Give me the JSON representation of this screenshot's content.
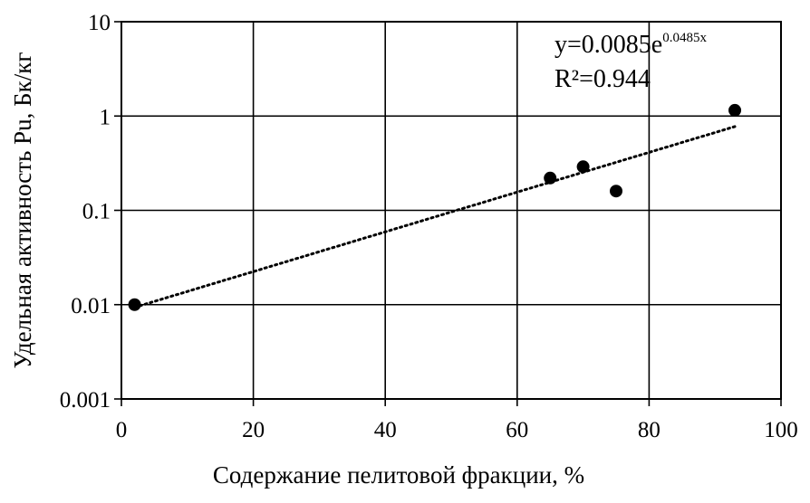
{
  "chart_data": {
    "type": "scatter",
    "xlabel": "Содержание пелитовой фракции, %",
    "ylabel": "Удельная активность Pu, Бк/кг",
    "xlim": [
      0,
      100
    ],
    "ylim": [
      0.001,
      10
    ],
    "yscale": "log",
    "grid": true,
    "x_ticks": [
      0,
      20,
      40,
      60,
      80,
      100
    ],
    "x_tick_labels": [
      "0",
      "20",
      "40",
      "60",
      "80",
      "100"
    ],
    "y_ticks": [
      0.001,
      0.01,
      0.1,
      1,
      10
    ],
    "y_tick_labels": [
      "0.001",
      "0.01",
      "0.1",
      "1",
      "10"
    ],
    "points": [
      {
        "x": 2,
        "y": 0.01
      },
      {
        "x": 65,
        "y": 0.22
      },
      {
        "x": 70,
        "y": 0.29
      },
      {
        "x": 75,
        "y": 0.16
      },
      {
        "x": 93,
        "y": 1.15
      }
    ],
    "trendline": {
      "type": "exponential",
      "a": 0.0085,
      "b": 0.0485,
      "x_range": [
        2,
        93
      ],
      "style": "dotted"
    },
    "annotations": {
      "equation_base": "y=0.0085e",
      "equation_exponent": "0.0485x",
      "r_squared": "R²=0.944"
    }
  }
}
